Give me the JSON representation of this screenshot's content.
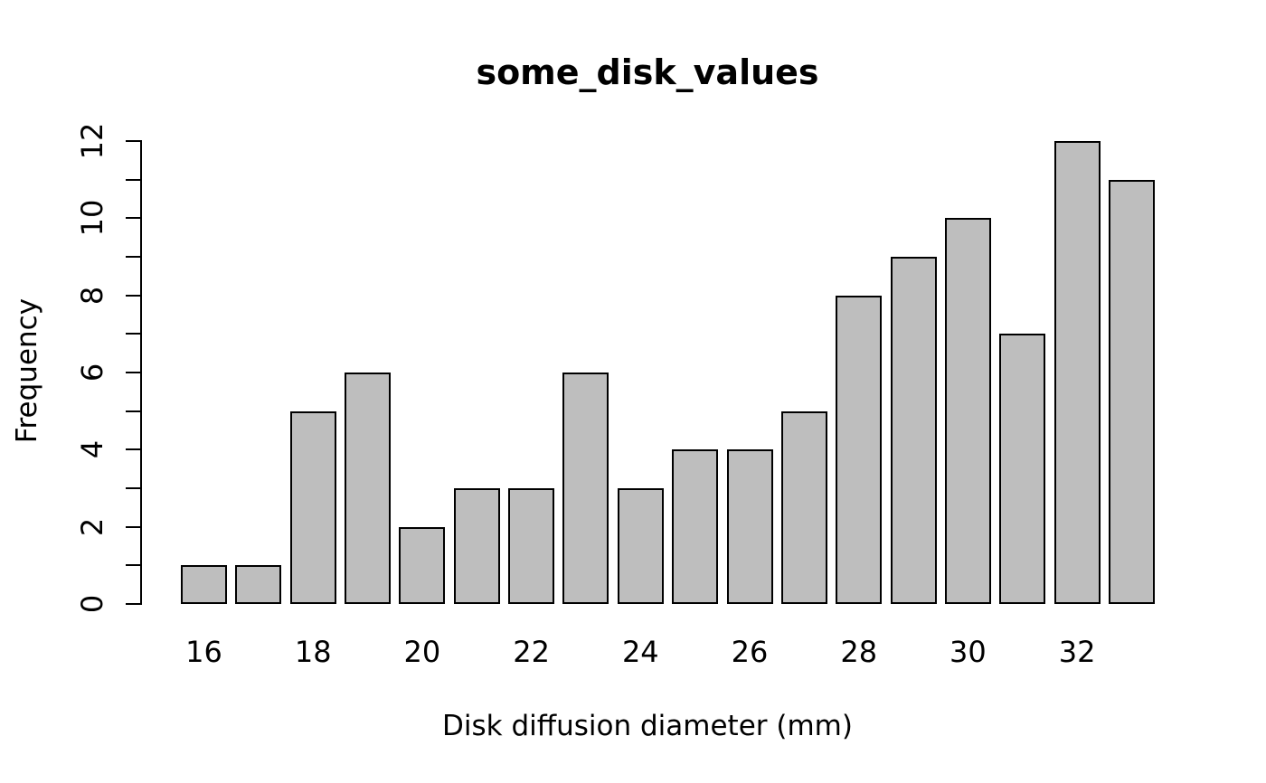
{
  "chart_data": {
    "type": "bar",
    "title": "some_disk_values",
    "xlabel": "Disk diffusion diameter (mm)",
    "ylabel": "Frequency",
    "categories": [
      16,
      17,
      18,
      19,
      20,
      21,
      22,
      23,
      24,
      25,
      26,
      27,
      28,
      29,
      30,
      31,
      32,
      33
    ],
    "values": [
      1,
      1,
      5,
      6,
      2,
      3,
      3,
      6,
      3,
      4,
      4,
      5,
      8,
      9,
      10,
      7,
      12,
      11
    ],
    "x_tick_labels": [
      "16",
      "18",
      "20",
      "22",
      "24",
      "26",
      "28",
      "30",
      "32"
    ],
    "x_tick_every": 2,
    "y_tick_values": [
      0,
      1,
      2,
      3,
      4,
      5,
      6,
      7,
      8,
      9,
      10,
      11,
      12
    ],
    "y_label_values": [
      0,
      2,
      4,
      6,
      8,
      10,
      12
    ],
    "ylim": [
      0,
      12
    ],
    "grid": false,
    "legend": null,
    "bar_fill_color": "#bebebe",
    "bar_border_color": "#000000",
    "axis_color": "#000000",
    "text_color": "#000000",
    "background_color": "#ffffff"
  }
}
